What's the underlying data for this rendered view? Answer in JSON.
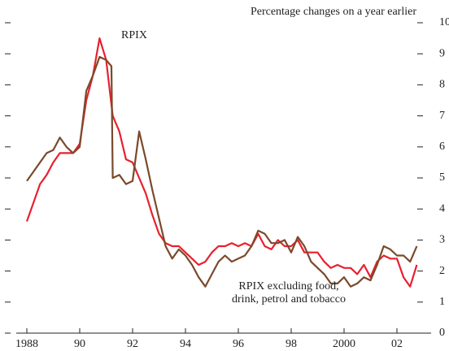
{
  "chart_data": {
    "type": "line",
    "y_label": "Percentage changes on a year earlier",
    "xlim": [
      1987.7,
      2003.4
    ],
    "xticks": [
      1988,
      {
        "value": 1990,
        "label": "90"
      },
      {
        "value": 1992,
        "label": "92"
      },
      {
        "value": 1994,
        "label": "94"
      },
      {
        "value": 1996,
        "label": "96"
      },
      {
        "value": 1998,
        "label": "98"
      },
      2000,
      {
        "value": 2002,
        "label": "02"
      }
    ],
    "ylim": [
      0,
      10
    ],
    "yticks": [
      0,
      1,
      2,
      3,
      4,
      5,
      6,
      7,
      8,
      9,
      10
    ],
    "series": [
      {
        "name": "RPIX",
        "color": "#e8202e",
        "x": [
          1988.0,
          1988.25,
          1988.5,
          1988.75,
          1989.0,
          1989.25,
          1989.5,
          1989.75,
          1990.0,
          1990.25,
          1990.5,
          1990.75,
          1991.0,
          1991.25,
          1991.5,
          1991.75,
          1992.0,
          1992.25,
          1992.5,
          1992.75,
          1993.0,
          1993.25,
          1993.5,
          1993.75,
          1994.0,
          1994.25,
          1994.5,
          1994.75,
          1995.0,
          1995.25,
          1995.5,
          1995.75,
          1996.0,
          1996.25,
          1996.5,
          1996.75,
          1997.0,
          1997.25,
          1997.5,
          1997.75,
          1998.0,
          1998.25,
          1998.5,
          1998.75,
          1999.0,
          1999.25,
          1999.5,
          1999.75,
          2000.0,
          2000.25,
          2000.5,
          2000.75,
          2001.0,
          2001.25,
          2001.5,
          2001.75,
          2002.0,
          2002.25,
          2002.5,
          2002.75
        ],
        "values": [
          3.6,
          4.2,
          4.8,
          5.1,
          5.5,
          5.8,
          5.8,
          5.8,
          6.1,
          7.5,
          8.3,
          9.5,
          8.8,
          7.0,
          6.5,
          5.6,
          5.5,
          5.0,
          4.5,
          3.8,
          3.2,
          2.9,
          2.8,
          2.8,
          2.6,
          2.4,
          2.2,
          2.3,
          2.6,
          2.8,
          2.8,
          2.9,
          2.8,
          2.9,
          2.8,
          3.2,
          2.8,
          2.7,
          3.0,
          2.8,
          2.8,
          3.0,
          2.6,
          2.6,
          2.6,
          2.3,
          2.1,
          2.2,
          2.1,
          2.1,
          1.9,
          2.2,
          1.8,
          2.3,
          2.5,
          2.4,
          2.4,
          1.8,
          1.5,
          2.2
        ]
      },
      {
        "name": "RPIX excluding food,\ndrink, petrol and tobacco",
        "color": "#7a4a2a",
        "x": [
          1988.0,
          1988.25,
          1988.5,
          1988.75,
          1989.0,
          1989.25,
          1989.5,
          1989.75,
          1990.0,
          1990.25,
          1990.5,
          1990.75,
          1991.0,
          1991.2,
          1991.25,
          1991.5,
          1991.75,
          1992.0,
          1992.25,
          1992.5,
          1992.75,
          1993.0,
          1993.25,
          1993.5,
          1993.75,
          1994.0,
          1994.25,
          1994.5,
          1994.75,
          1995.0,
          1995.25,
          1995.5,
          1995.75,
          1996.0,
          1996.25,
          1996.5,
          1996.75,
          1997.0,
          1997.25,
          1997.5,
          1997.75,
          1998.0,
          1998.25,
          1998.5,
          1998.75,
          1999.0,
          1999.25,
          1999.5,
          1999.75,
          2000.0,
          2000.25,
          2000.5,
          2000.75,
          2001.0,
          2001.25,
          2001.5,
          2001.75,
          2002.0,
          2002.25,
          2002.5,
          2002.75
        ],
        "values": [
          4.9,
          5.2,
          5.5,
          5.8,
          5.9,
          6.3,
          6.0,
          5.8,
          6.0,
          7.8,
          8.3,
          8.9,
          8.8,
          8.6,
          5.0,
          5.1,
          4.8,
          4.9,
          6.5,
          5.6,
          4.6,
          3.7,
          2.8,
          2.4,
          2.7,
          2.5,
          2.2,
          1.8,
          1.5,
          1.9,
          2.3,
          2.5,
          2.3,
          2.4,
          2.5,
          2.8,
          3.3,
          3.2,
          2.9,
          2.9,
          3.0,
          2.6,
          3.1,
          2.8,
          2.3,
          2.1,
          1.9,
          1.6,
          1.6,
          1.8,
          1.5,
          1.6,
          1.8,
          1.7,
          2.2,
          2.8,
          2.7,
          2.5,
          2.5,
          2.3,
          2.8
        ]
      }
    ]
  }
}
